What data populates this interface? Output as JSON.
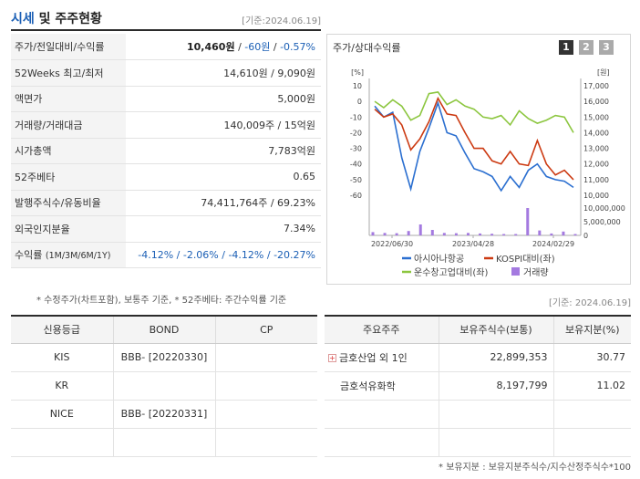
{
  "header": {
    "title_main": "시세",
    "title_rest": " 및 주주현황",
    "base_date": "[기준:2024.06.19]"
  },
  "info_rows": [
    {
      "label": "주가/전일대비/수익률",
      "price": "10,460원",
      "sep1": " / ",
      "change": "-60원",
      "sep2": " / ",
      "pct": "-0.57%"
    },
    {
      "label": "52Weeks 최고/최저",
      "value": "14,610원 / 9,090원"
    },
    {
      "label": "액면가",
      "value": "5,000원"
    },
    {
      "label": "거래량/거래대금",
      "value": "140,009주 / 15억원"
    },
    {
      "label": "시가총액",
      "value": "7,783억원"
    },
    {
      "label": "52주베타",
      "value": "0.65"
    },
    {
      "label": "발행주식수/유동비율",
      "value": "74,411,764주 / 69.23%"
    },
    {
      "label": "외국인지분율",
      "value": "7.34%"
    },
    {
      "label": "수익률",
      "label_sub": "(1M/3M/6M/1Y)",
      "value": "-4.12% / -2.06% / -4.12% / -20.27%"
    }
  ],
  "chart": {
    "title": "주가/상대수익률",
    "tabs": [
      "1",
      "2",
      "3"
    ],
    "left_unit": "[%]",
    "right_unit": "[원]",
    "legend": [
      "아시아나항공",
      "KOSPI대비(좌)",
      "운수창고업대비(좌)",
      "거래량"
    ],
    "colors": {
      "stock": "#2b6fd0",
      "kospi": "#cc3a12",
      "sector": "#8cc63f",
      "volume": "#a47ae0"
    }
  },
  "chart_data": {
    "type": "line",
    "x_ticks": [
      "2022/06/30",
      "2023/04/28",
      "2024/02/29"
    ],
    "left_ticks": [
      "10",
      "0",
      "-10",
      "-20",
      "-30",
      "-40",
      "-50",
      "-60"
    ],
    "right_ticks": [
      "17,000",
      "16,000",
      "15,000",
      "14,000",
      "13,000",
      "12,000",
      "11,000",
      "10,000"
    ],
    "volume_ticks": [
      "10,000,000",
      "5,000,000",
      "0"
    ],
    "left_ylim": [
      -60,
      10
    ],
    "right_ylim": [
      10000,
      17000
    ],
    "volume_ylim": [
      0,
      10000000
    ],
    "series": [
      {
        "name": "아시아나항공",
        "values": [
          -3,
          -10,
          -7,
          -36,
          -56,
          -32,
          -17,
          -1,
          -20,
          -22,
          -33,
          -43,
          -45,
          -48,
          -57,
          -48,
          -55,
          -44,
          -40,
          -48,
          -50,
          -51,
          -55
        ]
      },
      {
        "name": "KOSPI대비(좌)",
        "values": [
          -5,
          -10,
          -8,
          -15,
          -31,
          -24,
          -13,
          2,
          -8,
          -9,
          -20,
          -30,
          -30,
          -38,
          -40,
          -32,
          -40,
          -41,
          -25,
          -40,
          -47,
          -44,
          -50
        ]
      },
      {
        "name": "운수창고업대비(좌)",
        "values": [
          0,
          -4,
          1,
          -3,
          -12,
          -9,
          5,
          6,
          -2,
          1,
          -3,
          -5,
          -10,
          -11,
          -9,
          -15,
          -6,
          -11,
          -14,
          -12,
          -9,
          -10,
          -20
        ]
      }
    ],
    "volume": [
      1200000,
      900000,
      800000,
      1600000,
      4000000,
      2000000,
      900000,
      800000,
      900000,
      700000,
      600000,
      500000,
      500000,
      10000000,
      1800000,
      700000,
      1400000,
      500000
    ]
  },
  "notes": {
    "note1": "* 수정주가(차트포함), 보통주 기준, * 52주베타: 주간수익률 기준",
    "date2": "[기준: 2024.06.19]",
    "note2": "* 보유지분 : 보유지분주식수/지수산정주식수*100"
  },
  "credit": {
    "headers": [
      "신용등급",
      "BOND",
      "CP"
    ],
    "rows": [
      [
        "KIS",
        "BBB-  [20220330]",
        ""
      ],
      [
        "KR",
        "",
        ""
      ],
      [
        "NICE",
        "BBB-  [20220331]",
        ""
      ],
      [
        "",
        "",
        ""
      ]
    ]
  },
  "holders": {
    "headers": [
      "주요주주",
      "보유주식수(보통)",
      "보유지분(%)"
    ],
    "rows": [
      [
        "금호산업 외 1인",
        "22,899,353",
        "30.77"
      ],
      [
        "금호석유화학",
        "8,197,799",
        "11.02"
      ],
      [
        "",
        "",
        ""
      ],
      [
        "",
        "",
        ""
      ]
    ]
  }
}
